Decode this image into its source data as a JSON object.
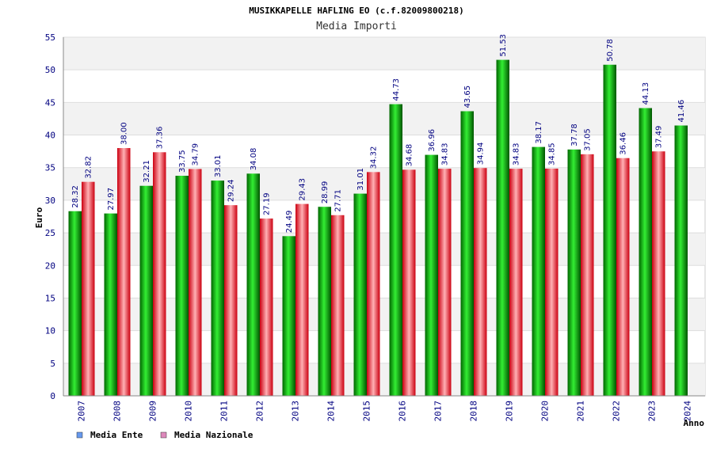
{
  "chart_data": {
    "type": "bar",
    "title": "MUSIKKAPELLE HAFLING EO (c.f.82009800218)",
    "subtitle": "Media Importi",
    "xlabel": "Anno",
    "ylabel": "Euro",
    "ylim": [
      0,
      55
    ],
    "yticks": [
      0,
      5,
      10,
      15,
      20,
      25,
      30,
      35,
      40,
      45,
      50,
      55
    ],
    "grid": true,
    "legend_position": "bottom-left",
    "categories": [
      "2007",
      "2008",
      "2009",
      "2010",
      "2011",
      "2012",
      "2013",
      "2014",
      "2015",
      "2016",
      "2017",
      "2018",
      "2019",
      "2020",
      "2021",
      "2022",
      "2023",
      "2024"
    ],
    "series": [
      {
        "name": "Media Ente",
        "color": "#00b000",
        "legend_color": "#6699ee",
        "values": [
          28.32,
          27.97,
          32.21,
          33.75,
          33.01,
          34.08,
          24.49,
          28.99,
          31.01,
          44.73,
          36.96,
          43.65,
          51.53,
          38.17,
          37.78,
          50.78,
          44.13,
          41.46
        ],
        "labels": [
          "28.32",
          "27.97",
          "32.21",
          "33.75",
          "33.01",
          "34.08",
          "24.49",
          "28.99",
          "31.01",
          "44.73",
          "36.96",
          "43.65",
          "51.53",
          "38.17",
          "37.78",
          "50.78",
          "44.13",
          "41.46"
        ]
      },
      {
        "name": "Media Nazionale",
        "color": "#e8202a",
        "legend_color": "#dd88bb",
        "values": [
          32.82,
          38.0,
          37.36,
          34.79,
          29.24,
          27.19,
          29.43,
          27.71,
          34.32,
          34.68,
          34.83,
          34.94,
          34.83,
          34.85,
          37.05,
          36.46,
          37.49,
          null
        ],
        "labels": [
          "32.82",
          "38.00",
          "37.36",
          "34.79",
          "29.24",
          "27.19",
          "29.43",
          "27.71",
          "34.32",
          "34.68",
          "34.83",
          "34.94",
          "34.83",
          "34.85",
          "37.05",
          "36.46",
          "37.49",
          ""
        ]
      }
    ]
  }
}
